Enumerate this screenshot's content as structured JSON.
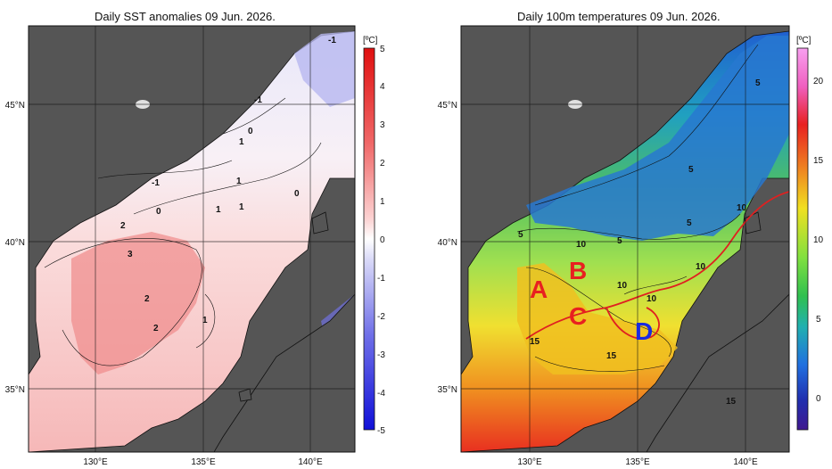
{
  "left_panel": {
    "title": "Daily SST anomalies 09 Jun. 2026.",
    "colorbar_unit": "[ºC]",
    "colorbar_ticks": [
      "5",
      "4",
      "3",
      "2",
      "1",
      "0",
      "-1",
      "-2",
      "-3",
      "-4",
      "-5"
    ],
    "colorbar_colors": [
      "#e02020",
      "#ec5050",
      "#f48080",
      "#f8a8a8",
      "#fcd0d0",
      "#ffffff",
      "#d8d8f8",
      "#b0b0f0",
      "#8080e8",
      "#5050e0",
      "#2020d8"
    ],
    "lat_labels": [
      "45°N",
      "40°N",
      "35°N"
    ],
    "lon_labels": [
      "130°E",
      "135°E",
      "140°E"
    ],
    "contour_labels": [
      "-1",
      "-1",
      "0",
      "1",
      "1",
      "-1",
      "0",
      "1",
      "1",
      "0",
      "2",
      "3",
      "2",
      "2",
      "1"
    ]
  },
  "right_panel": {
    "title": "Daily 100m temperatures 09 Jun. 2026.",
    "colorbar_unit": "[ºC]",
    "colorbar_ticks": [
      "20",
      "15",
      "10",
      "5",
      "0"
    ],
    "colorbar_colors": [
      "#f070d0",
      "#e82020",
      "#f08020",
      "#f0e020",
      "#a0e040",
      "#30c040",
      "#20b0a0",
      "#2080e0",
      "#2040c0",
      "#4020a0"
    ],
    "lat_labels": [
      "45°N",
      "40°N",
      "35°N"
    ],
    "lon_labels": [
      "130°E",
      "135°E",
      "140°E"
    ],
    "contour_labels": [
      "5",
      "5",
      "5",
      "5",
      "5",
      "10",
      "10",
      "10",
      "10",
      "10",
      "15",
      "15",
      "15"
    ],
    "regions": [
      "A",
      "B",
      "C",
      "D"
    ]
  }
}
